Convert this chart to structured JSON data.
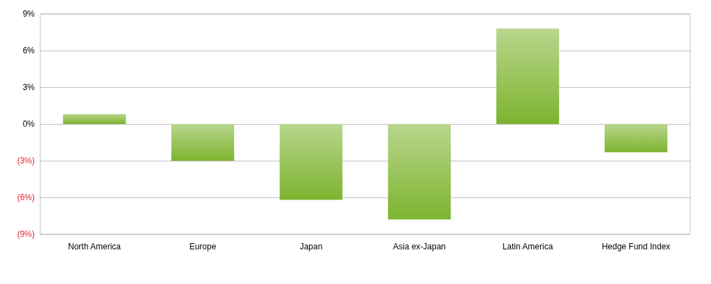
{
  "chart_data": {
    "type": "bar",
    "categories": [
      "North America",
      "Europe",
      "Japan",
      "Asia ex-Japan",
      "Latin America",
      "Hedge Fund Index"
    ],
    "values": [
      0.8,
      -3.0,
      -6.2,
      -7.8,
      7.8,
      -2.3
    ],
    "color": "#7db42f",
    "ylim": [
      -9,
      9
    ],
    "yticks": [
      {
        "value": -9,
        "label": "(9%)"
      },
      {
        "value": -6,
        "label": "(6%)"
      },
      {
        "value": -3,
        "label": "(3%)"
      },
      {
        "value": 0,
        "label": "0%"
      },
      {
        "value": 3,
        "label": "3%"
      },
      {
        "value": 6,
        "label": "6%"
      },
      {
        "value": 9,
        "label": "9%"
      }
    ],
    "grid": "y"
  }
}
